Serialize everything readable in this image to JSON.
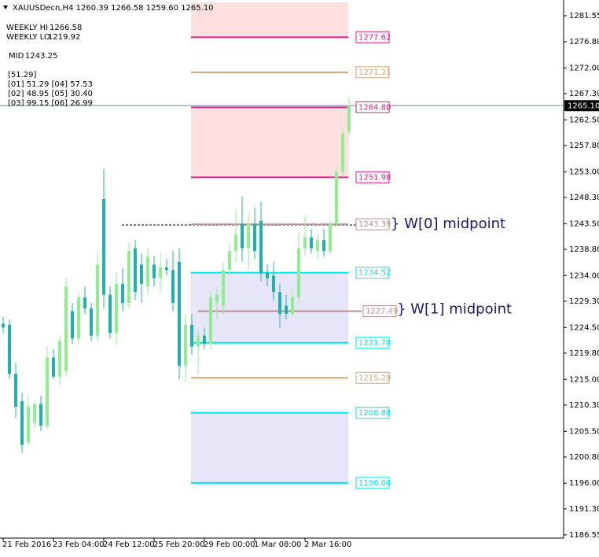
{
  "chart_data": {
    "type": "candlestick",
    "title": "XAUUSDecn,H4  1260.39 1266.58 1259.60 1265.10",
    "info": [
      {
        "label": "WEEKLY HI",
        "value": 1266.58
      },
      {
        "label": "WEEKLY LO",
        "value": 1219.92
      },
      {
        "label": "MID",
        "value": 1243.25
      }
    ],
    "info_lines": [
      "[51.29]",
      "[01] 51.29  [04] 57.53",
      "[02] 48.95  [05] 30.40",
      "[03] 99.15  [06] 26.99"
    ],
    "categories": [
      "21 Feb 2016",
      null,
      null,
      null,
      null,
      null,
      null,
      null,
      "23 Feb 04:00",
      null,
      null,
      null,
      null,
      null,
      null,
      null,
      "24 Feb 12:00",
      null,
      null,
      null,
      null,
      null,
      null,
      null,
      "25 Feb 20:00",
      null,
      null,
      null,
      null,
      null,
      null,
      null,
      "29 Feb 00:00",
      null,
      null,
      null,
      null,
      null,
      null,
      null,
      "1 Mar 08:00",
      null,
      null,
      null,
      null,
      null,
      null,
      null,
      "2 Mar 16:00",
      null,
      null,
      null,
      null,
      null,
      null,
      null
    ],
    "open": [
      1225.2,
      1225.0,
      1216.0,
      1211.0,
      1203.5,
      1207.0,
      1210.5,
      1206.5,
      1219.0,
      1215.5,
      1216.5,
      1227.5,
      1222.5,
      1230.0,
      1228.0,
      1223.0,
      1248.0,
      1230.5,
      1223.5,
      1232.5,
      1229.0,
      1239.0,
      1236.0,
      1232.0,
      1236.0,
      1233.5,
      1235.5,
      1235.0,
      1236.5,
      1217.5,
      1225.0,
      1221.0,
      1223.0,
      1221.5,
      1229.0,
      1228.5,
      1235.0,
      1238.5,
      1243.5,
      1239.0,
      1243.5,
      1244.0,
      1234.5,
      1234.0,
      1231.0,
      1228.5,
      1227.0,
      1230.0,
      1239.0,
      1241.0,
      1238.5,
      1240.5,
      1238.5,
      1243.5,
      1253.0,
      1260.39
    ],
    "high": [
      1226.5,
      1226.0,
      1218.0,
      1212.5,
      1212.0,
      1211.0,
      1212.0,
      1221.0,
      1220.5,
      1223.0,
      1233.5,
      1229.0,
      1231.0,
      1232.0,
      1229.0,
      1238.5,
      1253.5,
      1232.0,
      1234.5,
      1235.5,
      1240.0,
      1240.5,
      1238.0,
      1239.0,
      1237.5,
      1238.0,
      1237.0,
      1238.5,
      1239.0,
      1227.0,
      1227.0,
      1224.0,
      1224.5,
      1231.0,
      1232.0,
      1236.5,
      1240.0,
      1246.0,
      1248.5,
      1245.5,
      1246.5,
      1247.5,
      1236.0,
      1236.5,
      1232.5,
      1230.5,
      1231.5,
      1242.0,
      1245.0,
      1242.5,
      1241.5,
      1242.5,
      1244.0,
      1254.0,
      1261.0,
      1266.58
    ],
    "low": [
      1223.5,
      1215.0,
      1208.0,
      1201.5,
      1203.0,
      1206.0,
      1205.5,
      1206.0,
      1215.0,
      1214.0,
      1215.5,
      1221.5,
      1221.5,
      1227.0,
      1222.0,
      1222.0,
      1228.0,
      1222.5,
      1221.5,
      1227.5,
      1228.0,
      1229.5,
      1229.0,
      1230.5,
      1232.0,
      1231.0,
      1234.0,
      1227.5,
      1215.0,
      1214.5,
      1219.5,
      1216.0,
      1220.5,
      1220.5,
      1226.0,
      1227.0,
      1234.0,
      1236.5,
      1236.5,
      1235.0,
      1237.0,
      1233.0,
      1232.0,
      1229.5,
      1224.5,
      1226.0,
      1226.5,
      1229.0,
      1237.5,
      1238.0,
      1237.0,
      1237.5,
      1238.0,
      1243.0,
      1252.0,
      1259.6
    ],
    "close": [
      1224.5,
      1216.0,
      1210.0,
      1203.0,
      1210.0,
      1210.5,
      1206.5,
      1219.0,
      1215.5,
      1222.0,
      1232.0,
      1222.5,
      1230.0,
      1228.0,
      1223.0,
      1236.0,
      1230.5,
      1223.5,
      1232.5,
      1229.0,
      1238.5,
      1231.0,
      1232.5,
      1237.5,
      1233.5,
      1235.5,
      1235.0,
      1229.0,
      1217.5,
      1225.0,
      1221.0,
      1223.0,
      1221.5,
      1230.0,
      1230.5,
      1235.0,
      1238.5,
      1241.5,
      1239.0,
      1243.5,
      1238.5,
      1234.5,
      1233.5,
      1231.0,
      1227.0,
      1227.0,
      1230.0,
      1239.0,
      1241.0,
      1239.0,
      1240.5,
      1238.5,
      1243.5,
      1253.0,
      1260.0,
      1265.1
    ],
    "up_color": "#90ee90",
    "down_color": "#20b2aa",
    "ylim": [
      1186.1,
      1284.0
    ],
    "yticks": [
      1281.55,
      {
        "value": 1276.8,
        "label": "1276.80"
      },
      {
        "value": 1272.0,
        "label": "1272.00"
      },
      {
        "value": 1267.3,
        "label": "1267.30"
      },
      {
        "value": 1262.5,
        "label": "1262.50"
      },
      {
        "value": 1257.8,
        "label": "1257.80"
      },
      {
        "value": 1253.0,
        "label": "1253.00"
      },
      {
        "value": 1248.3,
        "label": "1248.30"
      },
      {
        "value": 1243.5,
        "label": "1243.50"
      },
      {
        "value": 1238.8,
        "label": "1238.80"
      },
      {
        "value": 1234.0,
        "label": "1234.00"
      },
      {
        "value": 1229.3,
        "label": "1229.30"
      },
      {
        "value": 1224.5,
        "label": "1224.50"
      },
      {
        "value": 1219.8,
        "label": "1219.80"
      },
      {
        "value": 1215.0,
        "label": "1215.00"
      },
      {
        "value": 1210.3,
        "label": "1210.30"
      },
      {
        "value": 1205.5,
        "label": "1205.50"
      },
      {
        "value": 1200.8,
        "label": "1200.80"
      },
      {
        "value": 1196.0,
        "label": "1196.00"
      },
      {
        "value": 1191.3,
        "label": "1191.30"
      },
      1186.55
    ],
    "current_price": {
      "value": 1265.1,
      "label": "1265.10"
    },
    "zones": [
      {
        "from": 1290.44,
        "to": 1277.62,
        "color": "#ffe0e0"
      },
      {
        "from": 1264.8,
        "to": 1251.98,
        "color": "#ffe0e0"
      },
      {
        "from": 1234.52,
        "to": 1221.7,
        "color": "#e6e6f8"
      },
      {
        "from": 1208.88,
        "to": 1196.06,
        "color": "#e6e6f8"
      }
    ],
    "levels": [
      {
        "value": 1277.62,
        "color": "#e0218a"
      },
      {
        "value": 1271.21,
        "color": "#d2a679"
      },
      {
        "value": 1264.8,
        "label": "1264.80",
        "color": "#e0218a"
      },
      {
        "value": 1251.98,
        "color": "#e0218a"
      },
      {
        "value": 1243.39,
        "color": "#bc8f8f"
      },
      {
        "value": 1234.52,
        "color": "#00e5ee"
      },
      {
        "value": 1227.49,
        "color": "#bc8f8f",
        "annotation": "} W[1] midpoint"
      },
      {
        "value": 1221.7,
        "label": "1221.70",
        "color": "#00e5ee"
      },
      {
        "value": 1215.29,
        "color": "#d2a679"
      },
      {
        "value": 1208.88,
        "color": "#00e5ee"
      },
      {
        "value": 1196.06,
        "color": "#00e5ee"
      }
    ],
    "annotation_w0": "} W[0] midpoint"
  }
}
